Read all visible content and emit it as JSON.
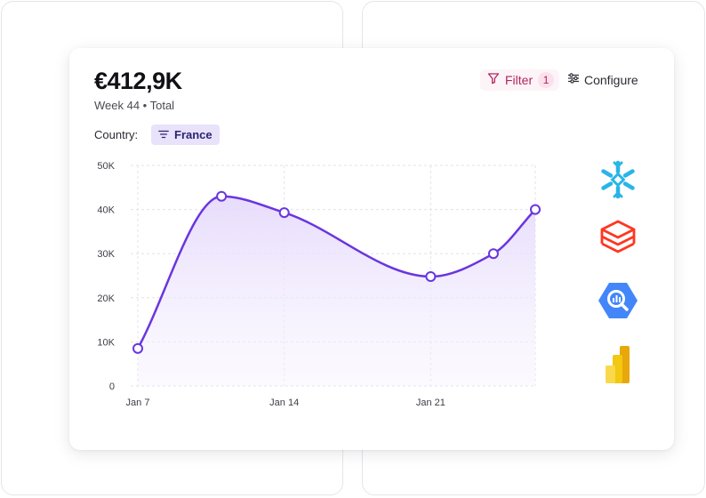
{
  "metric": {
    "total_value": "€412,9K",
    "subtitle": "Week 44 • Total"
  },
  "toolbar": {
    "filter_label": "Filter",
    "filter_count": "1",
    "configure_label": "Configure"
  },
  "filters": {
    "country_label": "Country:",
    "country_value": "France"
  },
  "colors": {
    "line": "#6a35e0",
    "fill": "#ede5fd",
    "filter_accent": "#b0265e",
    "chip_bg": "#e8e2fb"
  },
  "integrations": [
    "snowflake-icon",
    "databricks-icon",
    "bigquery-icon",
    "power-bi-icon"
  ],
  "chart_data": {
    "type": "area",
    "x": [
      "2024-01-07",
      "2024-01-11",
      "2024-01-14",
      "2024-01-21",
      "2024-01-24",
      "2024-01-26"
    ],
    "values": [
      8500,
      43000,
      39300,
      24800,
      30000,
      40000
    ],
    "x_ticks": [
      {
        "label": "Jan 7",
        "value": "2024-01-07"
      },
      {
        "label": "Jan 14",
        "value": "2024-01-14"
      },
      {
        "label": "Jan 21",
        "value": "2024-01-21"
      }
    ],
    "y_ticks": [
      {
        "label": "0",
        "value": 0
      },
      {
        "label": "10K",
        "value": 10000
      },
      {
        "label": "20K",
        "value": 20000
      },
      {
        "label": "30K",
        "value": 30000
      },
      {
        "label": "40K",
        "value": 40000
      },
      {
        "label": "50K",
        "value": 50000
      }
    ],
    "ylim": [
      0,
      50000
    ],
    "xlim": [
      "2024-01-07",
      "2024-01-26"
    ],
    "grid": true
  }
}
